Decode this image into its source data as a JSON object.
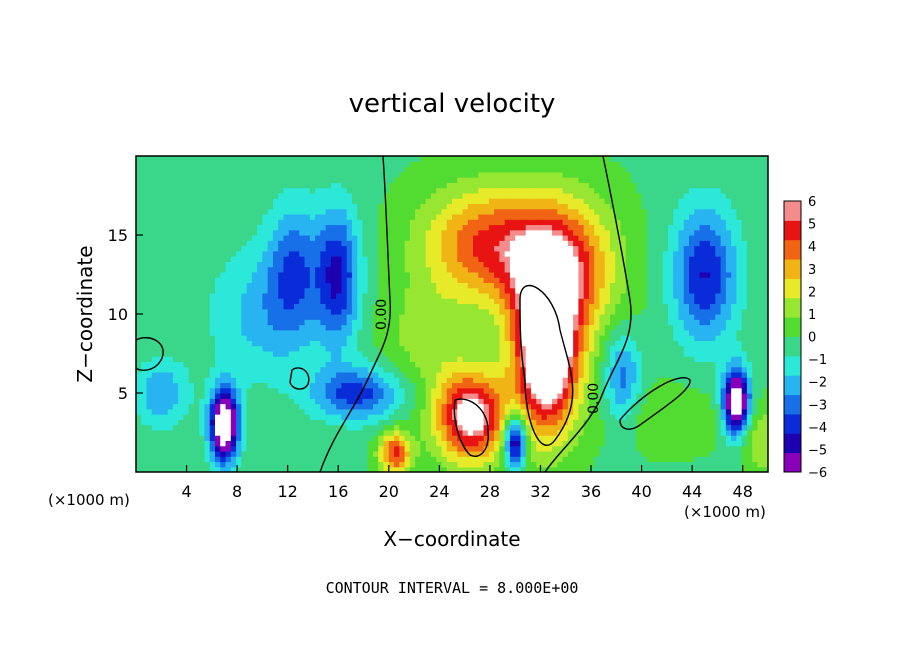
{
  "chart_data": {
    "type": "heatmap",
    "title": "vertical velocity",
    "xlabel": "X−coordinate",
    "ylabel": "Z−coordinate",
    "x_unit": "(×1000 m)",
    "x_unit_right": "(×1000 m)",
    "footer": "CONTOUR INTERVAL = 8.000E+00",
    "contour_label": "0.00",
    "xlim": [
      0,
      50
    ],
    "ylim": [
      0,
      20
    ],
    "x_ticks": [
      4,
      8,
      12,
      16,
      20,
      24,
      28,
      32,
      36,
      40,
      44,
      48
    ],
    "y_ticks": [
      5,
      10,
      15
    ],
    "x_tick_labels": [
      "4",
      "8",
      "12",
      "16",
      "20",
      "24",
      "28",
      "32",
      "36",
      "40",
      "44",
      "48"
    ],
    "y_tick_labels": [
      "5",
      "10",
      "15"
    ],
    "colorbar": {
      "range": [
        -6,
        6
      ],
      "labels": [
        "6",
        "5",
        "4",
        "3",
        "2",
        "1",
        "0",
        "−1",
        "−2",
        "−3",
        "−4",
        "−5",
        "−6"
      ]
    },
    "features": [
      {
        "x": 27.5,
        "z": 14.5,
        "value": 4.5,
        "sx": 3.5,
        "sz": 2.5
      },
      {
        "x": 33.5,
        "z": 13.0,
        "value": 5.5,
        "sx": 3.0,
        "sz": 3.0
      },
      {
        "x": 32.5,
        "z": 7.5,
        "value": 9.0,
        "sx": 1.8,
        "sz": 3.5
      },
      {
        "x": 26.5,
        "z": 3.5,
        "value": 7.0,
        "sx": 2.0,
        "sz": 2.0
      },
      {
        "x": 20.5,
        "z": 1.2,
        "value": 5.0,
        "sx": 0.9,
        "sz": 1.0
      },
      {
        "x": 23.0,
        "z": 8.5,
        "value": 1.5,
        "sx": 2.5,
        "sz": 2.5
      },
      {
        "x": 7.0,
        "z": 3.0,
        "value": -9.0,
        "sx": 0.8,
        "sz": 1.6
      },
      {
        "x": 47.5,
        "z": 4.5,
        "value": -9.0,
        "sx": 0.7,
        "sz": 1.4
      },
      {
        "x": 30.0,
        "z": 2.0,
        "value": -7.0,
        "sx": 0.6,
        "sz": 1.2
      },
      {
        "x": 16.0,
        "z": 12.5,
        "value": -4.5,
        "sx": 1.2,
        "sz": 3.0
      },
      {
        "x": 12.5,
        "z": 13.0,
        "value": -3.0,
        "sx": 1.5,
        "sz": 3.0
      },
      {
        "x": 45.0,
        "z": 12.5,
        "value": -4.5,
        "sx": 1.8,
        "sz": 3.0
      },
      {
        "x": 17.5,
        "z": 5.0,
        "value": -4.0,
        "sx": 2.5,
        "sz": 1.2
      },
      {
        "x": 10.0,
        "z": 10.0,
        "value": -2.0,
        "sx": 3.0,
        "sz": 3.0
      },
      {
        "x": 2.0,
        "z": 5.0,
        "value": -2.5,
        "sx": 1.5,
        "sz": 1.5
      },
      {
        "x": 38.5,
        "z": 6.0,
        "value": -3.0,
        "sx": 1.0,
        "sz": 2.0
      },
      {
        "x": 42.0,
        "z": 3.5,
        "value": 1.0,
        "sx": 3.0,
        "sz": 1.5
      },
      {
        "x": 49.5,
        "z": 2.0,
        "value": 2.0,
        "sx": 1.0,
        "sz": 1.5
      }
    ]
  }
}
